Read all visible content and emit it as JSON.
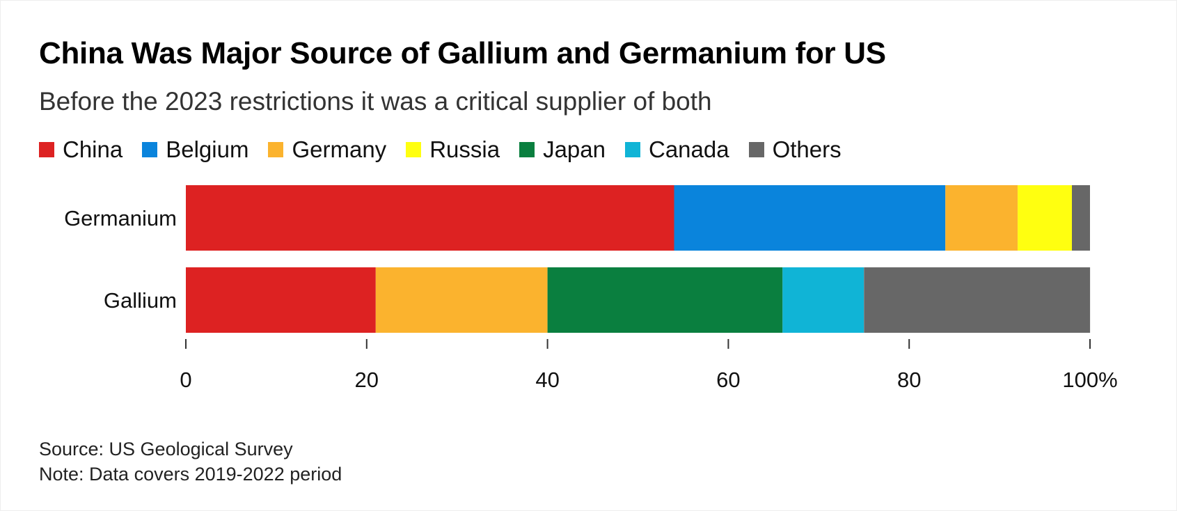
{
  "header": {
    "title": "China Was Major Source of Gallium and Germanium for US",
    "subtitle": "Before the 2023 restrictions it was a critical supplier of both"
  },
  "legend": [
    {
      "label": "China",
      "color": "#dd2222"
    },
    {
      "label": "Belgium",
      "color": "#0a84dc"
    },
    {
      "label": "Germany",
      "color": "#fbb32e"
    },
    {
      "label": "Russia",
      "color": "#ffff10"
    },
    {
      "label": "Japan",
      "color": "#0a7f3f"
    },
    {
      "label": "Canada",
      "color": "#10b4d6"
    },
    {
      "label": "Others",
      "color": "#676767"
    }
  ],
  "chart_data": {
    "type": "bar",
    "orientation": "horizontal",
    "stacked": true,
    "title": "China Was Major Source of Gallium and Germanium for US",
    "subtitle": "Before the 2023 restrictions it was a critical supplier of both",
    "categories": [
      "Germanium",
      "Gallium"
    ],
    "series": [
      {
        "name": "China",
        "color": "#dd2222",
        "values": [
          54,
          21
        ]
      },
      {
        "name": "Belgium",
        "color": "#0a84dc",
        "values": [
          30,
          0
        ]
      },
      {
        "name": "Germany",
        "color": "#fbb32e",
        "values": [
          8,
          19
        ]
      },
      {
        "name": "Russia",
        "color": "#ffff10",
        "values": [
          6,
          0
        ]
      },
      {
        "name": "Japan",
        "color": "#0a7f3f",
        "values": [
          0,
          26
        ]
      },
      {
        "name": "Canada",
        "color": "#10b4d6",
        "values": [
          0,
          9
        ]
      },
      {
        "name": "Others",
        "color": "#676767",
        "values": [
          2,
          25
        ]
      }
    ],
    "xlim": [
      0,
      100
    ],
    "xticks": [
      0,
      20,
      40,
      60,
      80,
      100
    ],
    "xtick_labels": [
      "0",
      "20",
      "40",
      "60",
      "80",
      "100%"
    ],
    "xlabel": "",
    "ylabel": "",
    "legend_position": "top-left",
    "grid": false
  },
  "footer": {
    "source": "Source: US Geological Survey",
    "note": "Note: Data covers 2019-2022 period"
  }
}
